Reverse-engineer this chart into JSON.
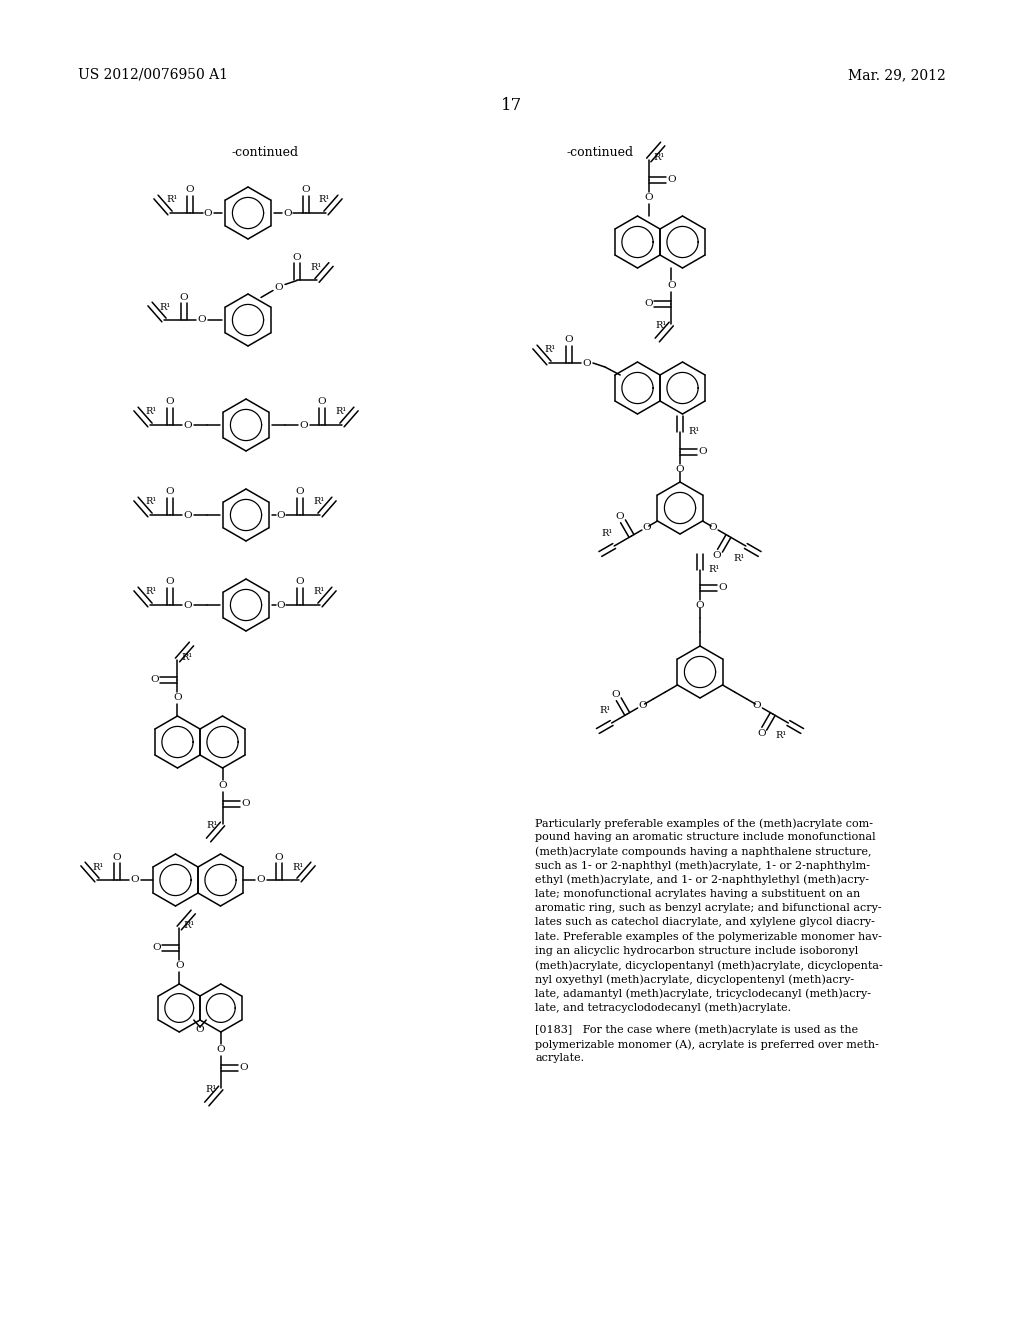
{
  "page_number": "17",
  "patent_number": "US 2012/0076950 A1",
  "patent_date": "Mar. 29, 2012",
  "continued_left": "-continued",
  "continued_right": "-continued",
  "background_color": "#ffffff",
  "text_color": "#000000",
  "paragraph_text": "Particularly preferable examples of the (meth)acrylate com-\npound having an aromatic structure include monofunctional\n(meth)acrylate compounds having a naphthalene structure,\nsuch as 1- or 2-naphthyl (meth)acrylate, 1- or 2-naphthylm-\nethyl (meth)acrylate, and 1- or 2-naphthylethyl (meth)acry-\nlate; monofunctional acrylates having a substituent on an\naromatic ring, such as benzyl acrylate; and bifunctional acry-\nlates such as catechol diacrylate, and xylylene glycol diacry-\nlate. Preferable examples of the polymerizable monomer hav-\ning an alicyclic hydrocarbon structure include isoboronyl\n(meth)acrylate, dicyclopentanyl (meth)acrylate, dicyclopenta-\nnyl oxyethyl (meth)acrylate, dicyclopentenyl (meth)acry-\nlate, adamantyl (meth)acrylate, tricyclodecanyl (meth)acry-\nlate, and tetracyclododecanyl (meth)acrylate.",
  "paragraph_0183": "[0183]   For the case where (meth)acrylate is used as the\npolymerizable monomer (A), acrylate is preferred over meth-\nacrylate."
}
